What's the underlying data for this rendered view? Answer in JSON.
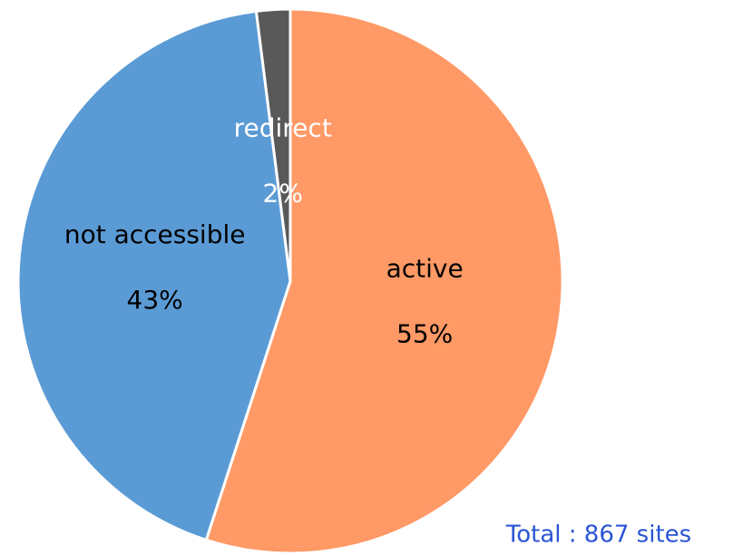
{
  "chart_data": {
    "type": "pie",
    "categories": [
      "active",
      "not accessible",
      "redirect"
    ],
    "values": [
      55,
      43,
      2
    ],
    "value_labels": [
      "55%",
      "43%",
      "2%"
    ],
    "colors": [
      "#FF9966",
      "#5B9BD5",
      "#595959"
    ],
    "annotation": "Total : 867 sites"
  }
}
